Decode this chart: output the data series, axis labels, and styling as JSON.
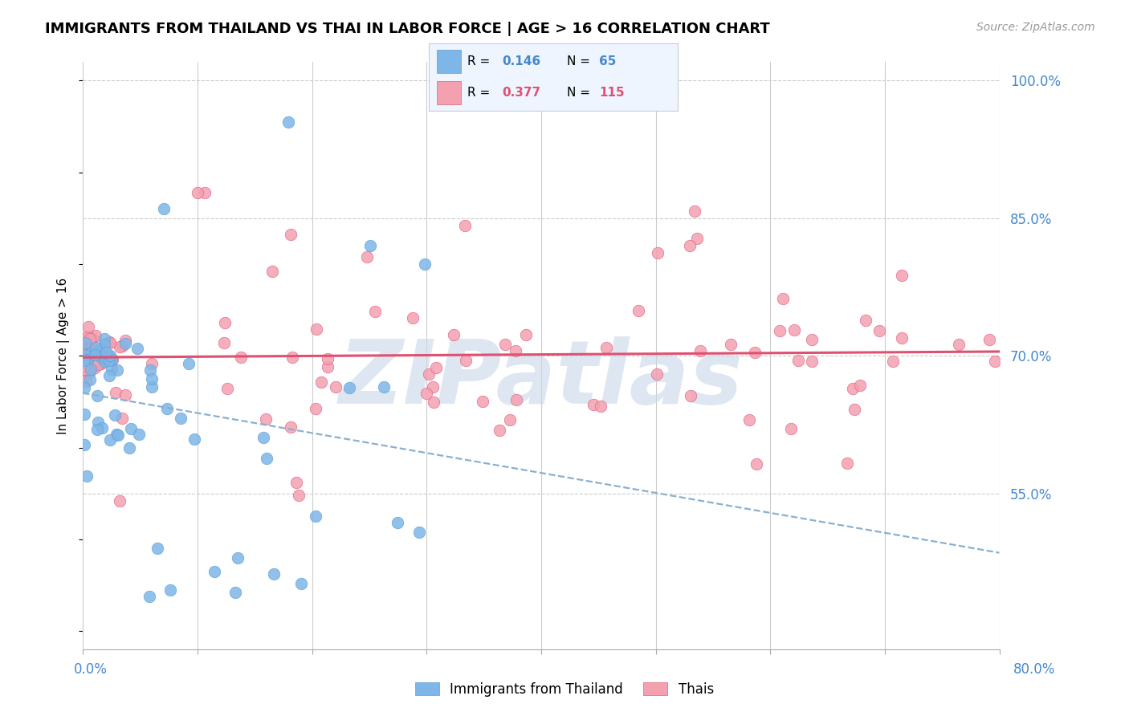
{
  "title": "IMMIGRANTS FROM THAILAND VS THAI IN LABOR FORCE | AGE > 16 CORRELATION CHART",
  "source": "Source: ZipAtlas.com",
  "ylabel": "In Labor Force | Age > 16",
  "right_yticks": [
    0.55,
    0.7,
    0.85,
    1.0
  ],
  "right_ytick_labels": [
    "55.0%",
    "70.0%",
    "85.0%",
    "100.0%"
  ],
  "xmin": 0.0,
  "xmax": 0.8,
  "ymin": 0.38,
  "ymax": 1.02,
  "blue_R": 0.146,
  "blue_N": 65,
  "pink_R": 0.377,
  "pink_N": 115,
  "blue_color": "#7EB6E8",
  "blue_edge": "#5B9FD4",
  "pink_color": "#F4A0B0",
  "pink_edge": "#E06080",
  "blue_line_color": "#8AB0D0",
  "pink_line_color": "#E05070",
  "watermark_color": "#C8D8E8",
  "watermark_text": "ZIPatlas",
  "legend_box_color": "#EEF5FF"
}
